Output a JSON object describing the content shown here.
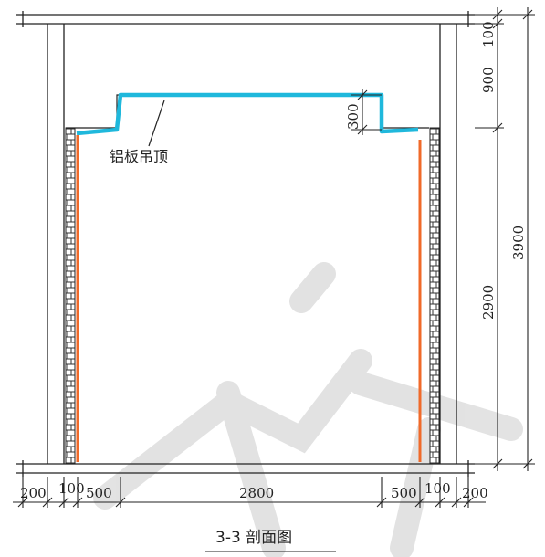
{
  "diagram": {
    "ceiling_label": "铝板吊顶",
    "caption": "3-3   剖面图",
    "colors": {
      "line": "#222222",
      "ceiling": "#1fb8dc",
      "finish_strip": "#f06a2a",
      "watermark": "#d9d9d9"
    },
    "dimensions": {
      "right": {
        "top": "100",
        "middle": "900",
        "bottom": "2900",
        "total": "3900"
      },
      "bottom": [
        "200",
        "100",
        "500",
        "2800",
        "500",
        "100",
        "200"
      ],
      "drop": "300"
    }
  }
}
